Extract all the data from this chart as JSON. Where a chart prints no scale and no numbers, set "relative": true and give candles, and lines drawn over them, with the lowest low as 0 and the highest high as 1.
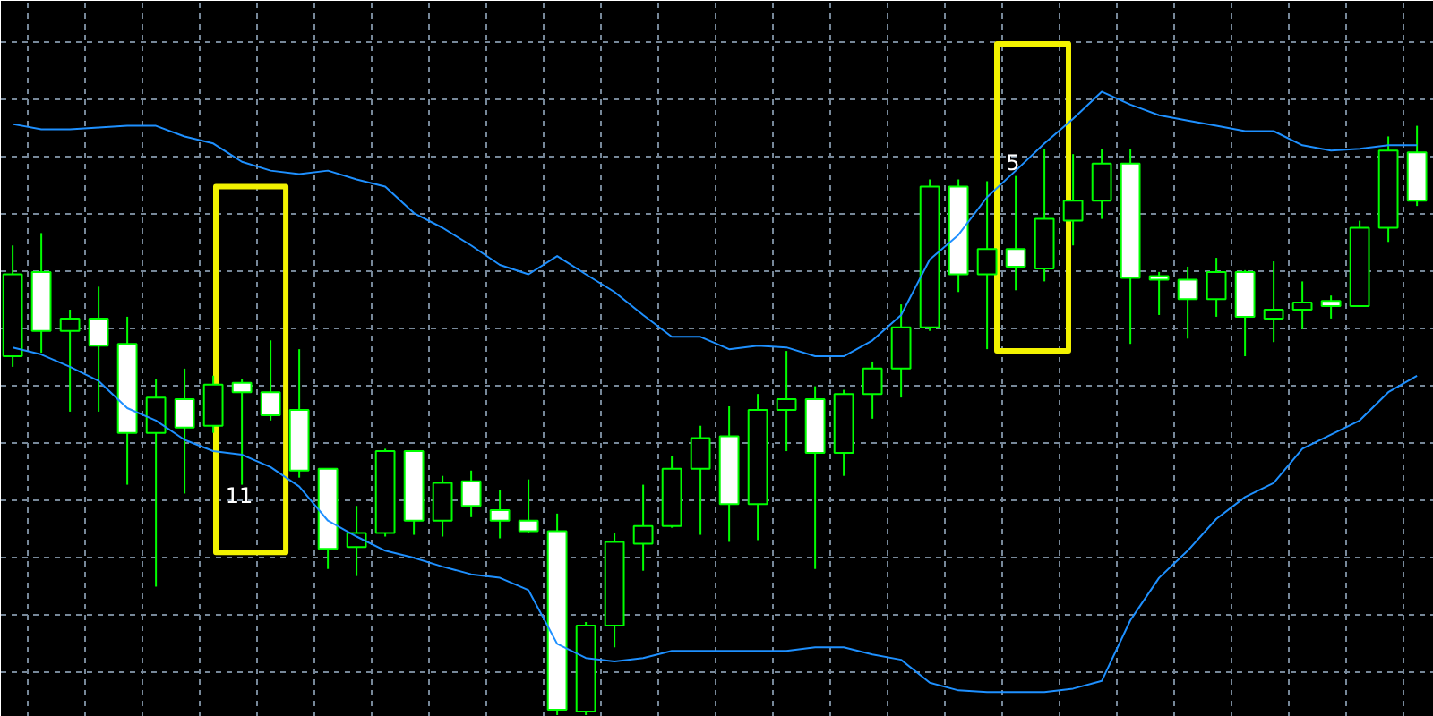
{
  "chart_data": {
    "type": "candlestick",
    "relative": true,
    "categories": [
      null,
      null,
      null,
      null,
      null,
      null,
      null,
      null,
      null,
      null,
      null,
      null,
      null,
      null,
      null,
      null,
      null,
      null,
      null,
      null,
      null,
      null,
      null,
      null,
      null,
      null,
      null,
      null,
      null,
      null,
      null,
      null,
      null,
      null,
      null,
      null,
      null,
      null,
      null,
      null,
      null,
      null,
      null,
      null,
      null,
      null,
      null,
      null,
      null,
      null
    ],
    "ohlc": [
      [
        0.609,
        0.797,
        0.591,
        0.748
      ],
      [
        0.752,
        0.818,
        0.615,
        0.652
      ],
      [
        0.652,
        0.688,
        0.515,
        0.673
      ],
      [
        0.673,
        0.727,
        0.515,
        0.627
      ],
      [
        0.63,
        0.676,
        0.391,
        0.479
      ],
      [
        0.479,
        0.57,
        0.218,
        0.539
      ],
      [
        0.536,
        0.588,
        0.376,
        0.488
      ],
      [
        0.491,
        0.576,
        0.479,
        0.561
      ],
      [
        0.564,
        0.57,
        0.391,
        0.548
      ],
      [
        0.548,
        0.636,
        0.5,
        0.509
      ],
      [
        0.518,
        0.621,
        0.403,
        0.415
      ],
      [
        0.418,
        0.418,
        0.248,
        0.282
      ],
      [
        0.285,
        0.355,
        0.236,
        0.309
      ],
      [
        0.309,
        0.452,
        0.303,
        0.448
      ],
      [
        0.448,
        0.448,
        0.306,
        0.33
      ],
      [
        0.33,
        0.406,
        0.303,
        0.394
      ],
      [
        0.397,
        0.415,
        0.336,
        0.355
      ],
      [
        0.348,
        0.382,
        0.3,
        0.33
      ],
      [
        0.33,
        0.4,
        0.309,
        0.312
      ],
      [
        0.312,
        0.342,
        0,
        0.009
      ],
      [
        0.006,
        0.158,
        0,
        0.152
      ],
      [
        0.152,
        0.309,
        0.115,
        0.294
      ],
      [
        0.291,
        0.391,
        0.245,
        0.321
      ],
      [
        0.321,
        0.439,
        0.318,
        0.418
      ],
      [
        0.418,
        0.491,
        0.306,
        0.47
      ],
      [
        0.473,
        0.524,
        0.294,
        0.358
      ],
      [
        0.358,
        0.545,
        0.297,
        0.518
      ],
      [
        0.518,
        0.618,
        0.448,
        0.536
      ],
      [
        0.536,
        0.558,
        0.248,
        0.445
      ],
      [
        0.445,
        0.552,
        0.406,
        0.545
      ],
      [
        0.545,
        0.6,
        0.503,
        0.588
      ],
      [
        0.588,
        0.697,
        0.539,
        0.658
      ],
      [
        0.658,
        0.909,
        0.652,
        0.897
      ],
      [
        0.897,
        0.909,
        0.718,
        0.748
      ],
      [
        0.748,
        0.906,
        0.621,
        0.791
      ],
      [
        0.791,
        0.915,
        0.721,
        0.761
      ],
      [
        0.758,
        0.961,
        0.736,
        0.842
      ],
      [
        0.839,
        0.952,
        0.797,
        0.873
      ],
      [
        0.873,
        0.961,
        0.842,
        0.936
      ],
      [
        0.936,
        0.961,
        0.63,
        0.742
      ],
      [
        0.745,
        0.752,
        0.679,
        0.739
      ],
      [
        0.739,
        0.761,
        0.639,
        0.706
      ],
      [
        0.706,
        0.776,
        0.676,
        0.752
      ],
      [
        0.752,
        0.755,
        0.609,
        0.676
      ],
      [
        0.673,
        0.77,
        0.633,
        0.688
      ],
      [
        0.688,
        0.736,
        0.655,
        0.7
      ],
      [
        0.703,
        0.712,
        0.673,
        0.694
      ],
      [
        0.694,
        0.839,
        0.694,
        0.827
      ],
      [
        0.827,
        0.982,
        0.803,
        0.958
      ],
      [
        0.955,
        1,
        0.864,
        0.873
      ]
    ],
    "color": "#00ff00",
    "colors": [
      "#000000",
      "#ffffff",
      "#000000",
      "#ffffff",
      "#ffffff",
      "#000000",
      "#ffffff",
      "#000000",
      "#ffffff",
      "#ffffff",
      "#ffffff",
      "#ffffff",
      "#000000",
      "#000000",
      "#ffffff",
      "#000000",
      "#ffffff",
      "#ffffff",
      "#ffffff",
      "#ffffff",
      "#000000",
      "#000000",
      "#000000",
      "#000000",
      "#000000",
      "#ffffff",
      "#000000",
      "#000000",
      "#ffffff",
      "#000000",
      "#000000",
      "#000000",
      "#000000",
      "#ffffff",
      "#000000",
      "#ffffff",
      "#000000",
      "#000000",
      "#000000",
      "#ffffff",
      "#ffffff",
      "#ffffff",
      "#000000",
      "#ffffff",
      "#000000",
      "#000000",
      "#ffffff",
      "#000000",
      "#000000",
      "#ffffff"
    ],
    "series": [
      {
        "type": "line",
        "color": "#1e90ff",
        "values": [
          1.003,
          0.994,
          0.994,
          0.997,
          1.0,
          1.0,
          0.982,
          0.97,
          0.939,
          0.924,
          0.918,
          0.924,
          0.909,
          0.897,
          0.852,
          0.827,
          0.797,
          0.764,
          0.748,
          0.779,
          0.748,
          0.718,
          0.679,
          0.642,
          0.642,
          0.621,
          0.627,
          0.624,
          0.609,
          0.609,
          0.636,
          0.679,
          0.773,
          0.815,
          0.879,
          0.924,
          0.97,
          1.012,
          1.058,
          1.036,
          1.018,
          1.009,
          1.0,
          0.991,
          0.991,
          0.967,
          0.958,
          0.961,
          0.967,
          0.967
        ]
      },
      {
        "type": "line",
        "color": "#1e90ff",
        "values": [
          0.624,
          0.612,
          0.591,
          0.567,
          0.521,
          0.5,
          0.467,
          0.448,
          0.442,
          0.421,
          0.388,
          0.33,
          0.303,
          0.279,
          0.267,
          0.252,
          0.239,
          0.233,
          0.212,
          0.121,
          0.097,
          0.091,
          0.097,
          0.109,
          0.109,
          0.109,
          0.109,
          0.109,
          0.115,
          0.115,
          0.103,
          0.094,
          0.055,
          0.042,
          0.039,
          0.039,
          0.039,
          0.045,
          0.058,
          0.161,
          0.233,
          0.279,
          0.333,
          0.37,
          0.394,
          0.452,
          0.476,
          0.5,
          0.548,
          0.576
        ]
      }
    ],
    "annotations": [
      "11",
      "5"
    ],
    "grid": true,
    "tick_labels": false
  }
}
